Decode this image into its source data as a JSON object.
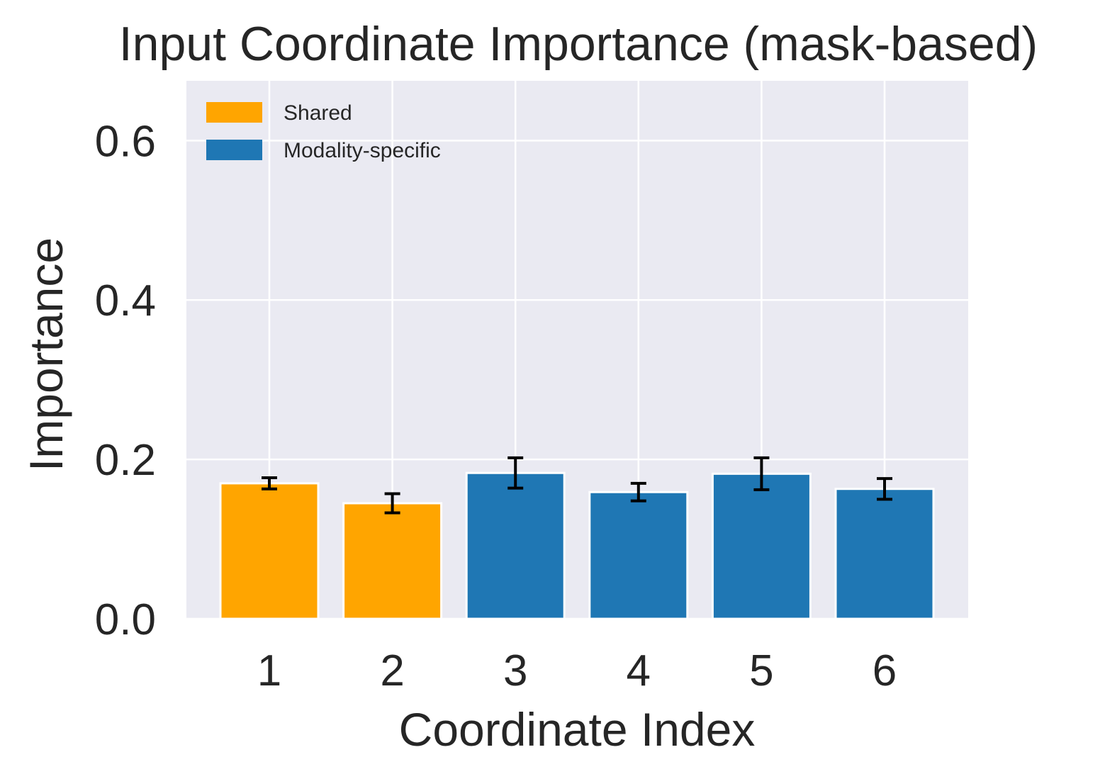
{
  "chart_data": {
    "type": "bar",
    "title": "Input Coordinate Importance (mask-based)",
    "xlabel": "Coordinate Index",
    "ylabel": "Importance",
    "categories": [
      "1",
      "2",
      "3",
      "4",
      "5",
      "6"
    ],
    "values": [
      0.17,
      0.145,
      0.183,
      0.159,
      0.182,
      0.163
    ],
    "errors": [
      0.007,
      0.012,
      0.019,
      0.011,
      0.02,
      0.013
    ],
    "groups": [
      "Shared",
      "Shared",
      "Modality-specific",
      "Modality-specific",
      "Modality-specific",
      "Modality-specific"
    ],
    "ylim": [
      0,
      0.675
    ],
    "yticks": [
      0.0,
      0.2,
      0.4,
      0.6
    ],
    "ytick_labels": [
      "0.0",
      "0.2",
      "0.4",
      "0.6"
    ],
    "grid": true,
    "legend": {
      "placement": "top-left",
      "entries": [
        {
          "label": "Shared",
          "color": "#ffa500"
        },
        {
          "label": "Modality-specific",
          "color": "#1f77b4"
        }
      ]
    },
    "colors": {
      "Shared": "#ffa500",
      "Modality-specific": "#1f77b4",
      "plot_background": "#eaeaf2",
      "grid": "#ffffff",
      "error_bar": "#000000",
      "text": "#262626"
    }
  }
}
